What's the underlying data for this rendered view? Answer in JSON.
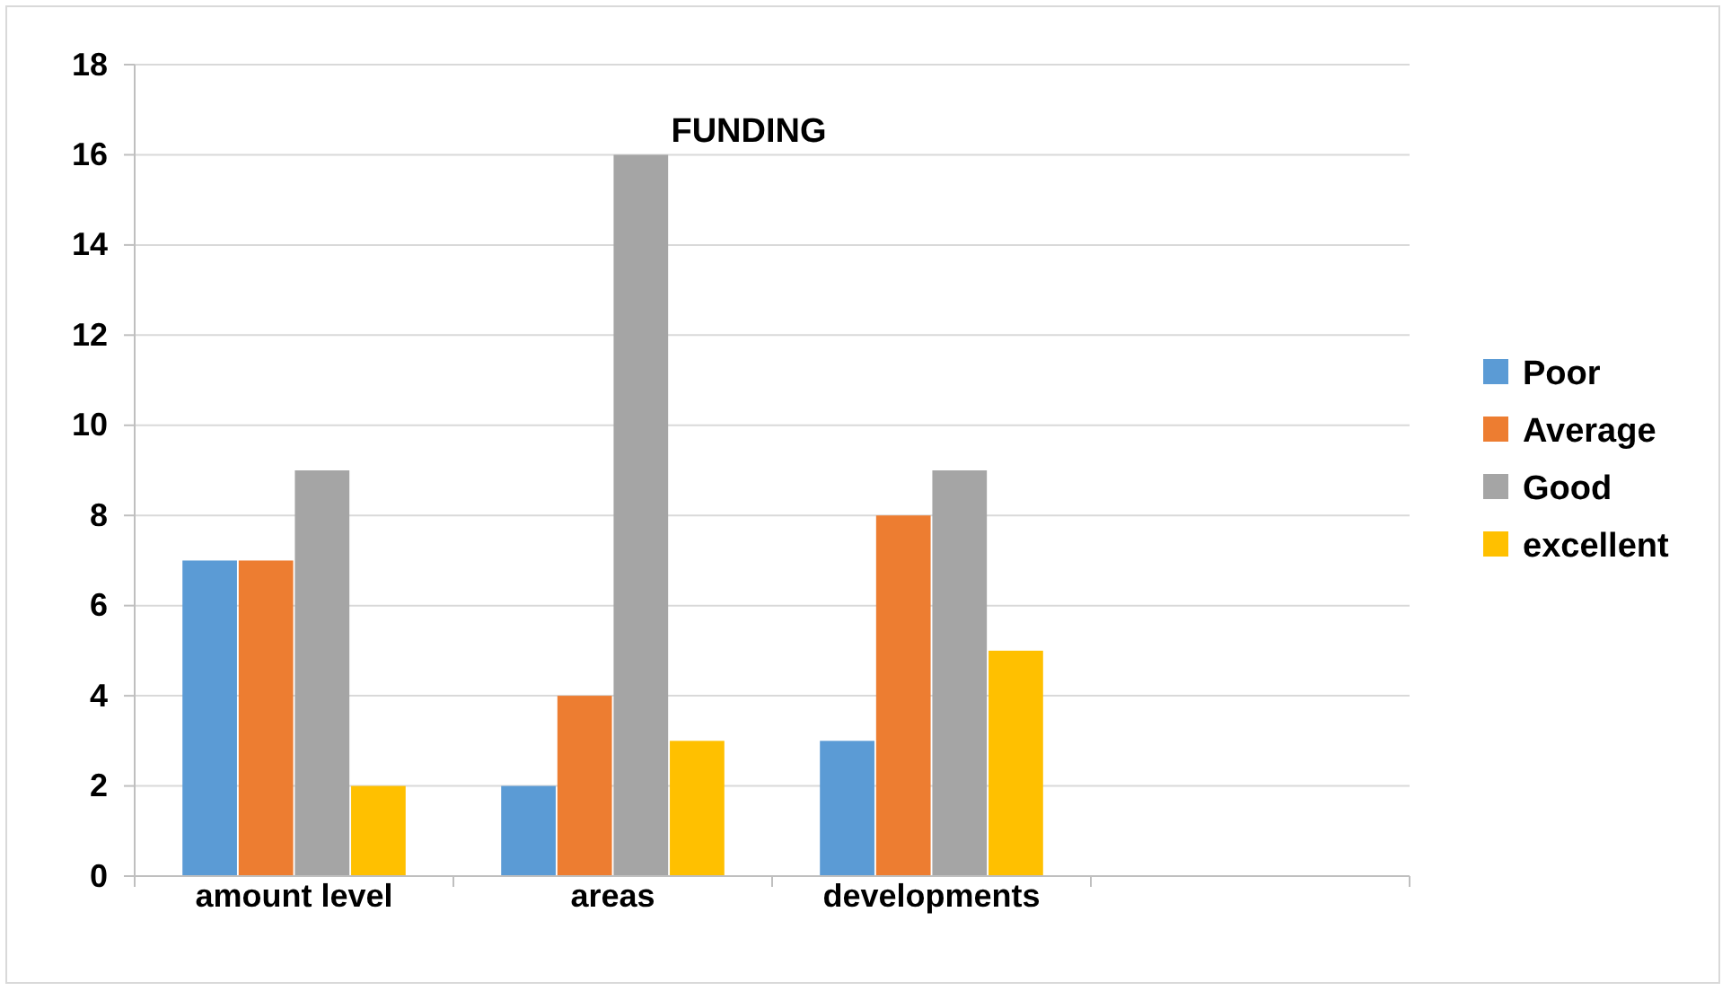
{
  "chart_data": {
    "type": "bar",
    "title": "FUNDING",
    "categories": [
      "amount level",
      "areas",
      "developments",
      null
    ],
    "series": [
      {
        "name": "Poor",
        "color": "#5b9bd5",
        "values": [
          7,
          2,
          3,
          null
        ]
      },
      {
        "name": "Average",
        "color": "#ed7d31",
        "values": [
          7,
          4,
          8,
          null
        ]
      },
      {
        "name": "Good",
        "color": "#a5a5a5",
        "values": [
          9,
          16,
          9,
          null
        ]
      },
      {
        "name": "excellent",
        "color": "#ffc000",
        "values": [
          2,
          3,
          5,
          null
        ]
      }
    ],
    "ylim": [
      0,
      18
    ],
    "yticks": [
      0,
      2,
      4,
      6,
      8,
      10,
      12,
      14,
      16,
      18
    ],
    "grid": "y",
    "legend": "right"
  }
}
